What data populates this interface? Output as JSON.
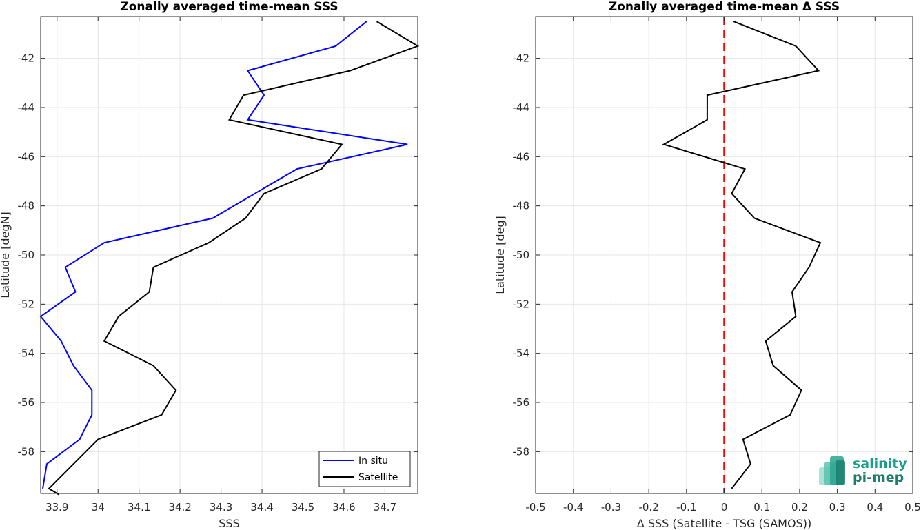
{
  "chart_data": [
    {
      "type": "line",
      "title": "Zonally averaged time-mean SSS",
      "xlabel": "SSS",
      "ylabel": "Latitude [degN]",
      "xlim": [
        33.86,
        34.78
      ],
      "ylim": [
        -59.7,
        -40.3
      ],
      "xticks": [
        33.9,
        34,
        34.1,
        34.2,
        34.3,
        34.4,
        34.5,
        34.6,
        34.7
      ],
      "xtick_labels": [
        "33.9",
        "34",
        "34.1",
        "34.2",
        "34.3",
        "34.4",
        "34.5",
        "34.6",
        "34.7"
      ],
      "yticks": [
        -42,
        -44,
        -46,
        -48,
        -50,
        -52,
        -54,
        -56,
        -58
      ],
      "ytick_labels": [
        "-42",
        "-44",
        "-46",
        "-48",
        "-50",
        "-52",
        "-54",
        "-56",
        "-58"
      ],
      "grid": true,
      "legend": "bottom-right",
      "series": [
        {
          "name": "In situ",
          "color": "#0000ff",
          "x": [
            34.655,
            34.58,
            34.365,
            34.405,
            34.365,
            34.755,
            34.485,
            34.28,
            34.015,
            33.92,
            33.945,
            33.86,
            33.91,
            33.94,
            33.985,
            33.985,
            33.955,
            33.875,
            33.865
          ],
          "y": [
            -40.5,
            -41.5,
            -42.5,
            -43.5,
            -44.5,
            -45.5,
            -46.5,
            -48.5,
            -49.5,
            -50.5,
            -51.5,
            -52.5,
            -53.5,
            -54.5,
            -55.5,
            -56.5,
            -57.5,
            -58.5,
            -59.5
          ]
        },
        {
          "name": "Satellite",
          "color": "#000000",
          "x": [
            34.68,
            34.78,
            34.615,
            34.355,
            34.32,
            34.595,
            34.545,
            34.405,
            34.36,
            34.27,
            34.135,
            34.125,
            34.05,
            34.015,
            34.135,
            34.19,
            34.155,
            34.0,
            33.94,
            33.88,
            33.905
          ],
          "y": [
            -40.5,
            -41.5,
            -42.5,
            -43.5,
            -44.5,
            -45.5,
            -46.5,
            -47.5,
            -48.5,
            -49.5,
            -50.5,
            -51.5,
            -52.5,
            -53.5,
            -54.5,
            -55.5,
            -56.5,
            -57.5,
            -58.5,
            -59.5,
            -59.75
          ]
        }
      ]
    },
    {
      "type": "line",
      "title": "Zonally averaged time-mean Δ SSS",
      "xlabel": "Δ SSS (Satellite - TSG (SAMOS))",
      "ylabel": "Latitude [deg]",
      "xlim": [
        -0.5,
        0.5
      ],
      "ylim": [
        -59.7,
        -40.3
      ],
      "xticks": [
        -0.5,
        -0.4,
        -0.3,
        -0.2,
        -0.1,
        0,
        0.1,
        0.2,
        0.3,
        0.4,
        0.5
      ],
      "xtick_labels": [
        "-0.5",
        "-0.4",
        "-0.3",
        "-0.2",
        "-0.1",
        "0",
        "0.1",
        "0.2",
        "0.3",
        "0.4",
        "0.5"
      ],
      "yticks": [
        -42,
        -44,
        -46,
        -48,
        -50,
        -52,
        -54,
        -56,
        -58
      ],
      "ytick_labels": [
        "-42",
        "-44",
        "-46",
        "-48",
        "-50",
        "-52",
        "-54",
        "-56",
        "-58"
      ],
      "grid": true,
      "reference_line": {
        "x": 0,
        "color": "#ff0000",
        "style": "dashed"
      },
      "series": [
        {
          "color": "#000000",
          "x": [
            0.025,
            0.19,
            0.25,
            -0.045,
            -0.045,
            -0.16,
            0.055,
            0.02,
            0.08,
            0.255,
            0.225,
            0.18,
            0.19,
            0.11,
            0.13,
            0.205,
            0.175,
            0.05,
            0.07,
            0.02
          ],
          "y": [
            -40.5,
            -41.5,
            -42.5,
            -43.5,
            -44.5,
            -45.5,
            -46.5,
            -47.5,
            -48.5,
            -49.5,
            -50.5,
            -51.5,
            -52.5,
            -53.5,
            -54.5,
            -55.5,
            -56.5,
            -57.5,
            -58.5,
            -59.5
          ]
        }
      ]
    }
  ],
  "logo": {
    "line1": "salinity",
    "line2": "pi-mep",
    "color": "#1a9e8a"
  }
}
